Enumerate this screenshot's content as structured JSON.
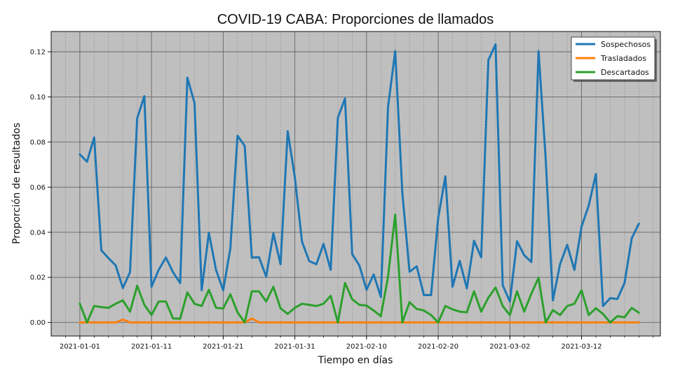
{
  "chart_data": {
    "type": "line",
    "title": "COVID-19 CABA: Proporciones de llamados",
    "xlabel": "Tiempo en días",
    "ylabel": "Proporción de resultados",
    "x_start": "2021-01-01",
    "x_end": "2021-03-20",
    "xlim": [
      "2020-12-28",
      "2021-03-23"
    ],
    "ylim": [
      -0.006,
      0.129
    ],
    "xticks": [
      "2021-01-01",
      "2021-01-11",
      "2021-01-21",
      "2021-01-31",
      "2021-02-10",
      "2021-02-20",
      "2021-03-02",
      "2021-03-12"
    ],
    "yticks": [
      "0.00",
      "0.02",
      "0.04",
      "0.06",
      "0.08",
      "0.10",
      "0.12"
    ],
    "grid": true,
    "legend_position": "top-right",
    "background_color": "#bfbfbf",
    "series": [
      {
        "name": "Sospechosos",
        "color": "#1f77b4",
        "values": [
          0.0745,
          0.0713,
          0.082,
          0.032,
          0.0285,
          0.0253,
          0.0153,
          0.0223,
          0.0905,
          0.1003,
          0.0158,
          0.0233,
          0.0288,
          0.0223,
          0.0175,
          0.1085,
          0.0973,
          0.0143,
          0.0398,
          0.0233,
          0.0143,
          0.0328,
          0.0828,
          0.0783,
          0.0288,
          0.0289,
          0.0203,
          0.0395,
          0.0258,
          0.0848,
          0.0643,
          0.0358,
          0.0272,
          0.0258,
          0.0348,
          0.0233,
          0.0908,
          0.0993,
          0.0303,
          0.0253,
          0.0145,
          0.0213,
          0.0113,
          0.0955,
          0.1203,
          0.0573,
          0.0225,
          0.0249,
          0.0122,
          0.0121,
          0.0463,
          0.0648,
          0.0158,
          0.0273,
          0.0151,
          0.0362,
          0.0289,
          0.1163,
          0.1233,
          0.0165,
          0.0093,
          0.036,
          0.0298,
          0.0268,
          0.1203,
          0.0725,
          0.0098,
          0.0258,
          0.0344,
          0.0233,
          0.0425,
          0.0518,
          0.0658,
          0.0073,
          0.0108,
          0.0104,
          0.0175,
          0.0373,
          0.0438
        ]
      },
      {
        "name": "Trasladados",
        "color": "#ff7f0e",
        "values": [
          0,
          0,
          0,
          0,
          0,
          0,
          0.0013,
          0,
          0,
          0,
          0,
          0,
          0,
          0,
          0,
          0,
          0,
          0,
          0,
          0,
          0,
          0,
          0,
          0,
          0.0018,
          0,
          0,
          0,
          0,
          0,
          0,
          0,
          0,
          0,
          0,
          0,
          0,
          0,
          0,
          0,
          0,
          0,
          0,
          0,
          0,
          0,
          0,
          0,
          0,
          0,
          0,
          0,
          0,
          0,
          0,
          0,
          0,
          0,
          0,
          0,
          0,
          0,
          0,
          0,
          0,
          0,
          0,
          0,
          0,
          0,
          0,
          0,
          0,
          0,
          0,
          0,
          0,
          0,
          0
        ]
      },
      {
        "name": "Descartados",
        "color": "#2ca02c",
        "values": [
          0.0083,
          0,
          0.0073,
          0.0068,
          0.0065,
          0.0083,
          0.0098,
          0.0048,
          0.0163,
          0.0078,
          0.0033,
          0.0093,
          0.0093,
          0.0018,
          0.0017,
          0.0133,
          0.0083,
          0.0073,
          0.0145,
          0.0065,
          0.0062,
          0.0125,
          0.0045,
          0,
          0.0138,
          0.0138,
          0.0093,
          0.0158,
          0.0063,
          0.0038,
          0.0065,
          0.0083,
          0.0078,
          0.0073,
          0.0083,
          0.0118,
          0,
          0.0175,
          0.0103,
          0.0078,
          0.0075,
          0.0053,
          0.0028,
          0.0203,
          0.0478,
          0,
          0.009,
          0.006,
          0.0053,
          0.0033,
          0,
          0.0073,
          0.0058,
          0.0048,
          0.0045,
          0.0138,
          0.0048,
          0.011,
          0.0155,
          0.0073,
          0.0033,
          0.0138,
          0.0048,
          0.0128,
          0.0198,
          0,
          0.0055,
          0.0033,
          0.0073,
          0.0083,
          0.0143,
          0.0033,
          0.0063,
          0.0038,
          0,
          0.0028,
          0.0023,
          0.0065,
          0.0043
        ]
      }
    ]
  }
}
